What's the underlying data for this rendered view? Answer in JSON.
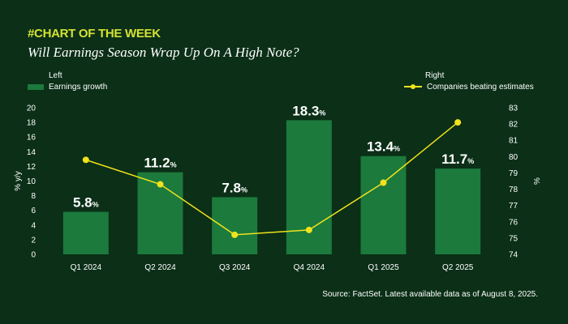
{
  "header": {
    "tag": "#CHART OF THE WEEK",
    "title": "Will Earnings Season Wrap Up On A High Note?"
  },
  "legend": {
    "left_heading": "Left",
    "left_series": "Earnings growth",
    "right_heading": "Right",
    "right_series": "Companies beating estimates"
  },
  "source": "Source: FactSet. Latest available data as of August 8, 2025.",
  "colors": {
    "background": "#0b2f17",
    "bar": "#1b7a3c",
    "line": "#f0e21d",
    "accent": "#d4e233"
  },
  "chart_data": {
    "type": "bar",
    "categories": [
      "Q1 2024",
      "Q2 2024",
      "Q3 2024",
      "Q4 2024",
      "Q1 2025",
      "Q2 2025"
    ],
    "series": [
      {
        "name": "Earnings growth",
        "axis": "left",
        "type": "bar",
        "values": [
          5.8,
          11.2,
          7.8,
          18.3,
          13.4,
          11.7
        ]
      },
      {
        "name": "Companies beating estimates",
        "axis": "right",
        "type": "line",
        "values": [
          79.8,
          78.3,
          75.2,
          75.5,
          78.4,
          82.1
        ]
      }
    ],
    "data_labels": [
      "5.8%",
      "11.2%",
      "7.8%",
      "18.3%",
      "13.4%",
      "11.7%"
    ],
    "ylabel": "% y/y",
    "ylabel_right": "%",
    "ylim": [
      0,
      20
    ],
    "ylim_right": [
      74,
      83
    ],
    "yticks": [
      "0",
      "2",
      "4",
      "6",
      "8",
      "10",
      "12",
      "14",
      "16",
      "18",
      "20"
    ],
    "yticks_right": [
      "74",
      "75",
      "76",
      "77",
      "78",
      "79",
      "80",
      "81",
      "82",
      "83"
    ],
    "grid": false
  }
}
